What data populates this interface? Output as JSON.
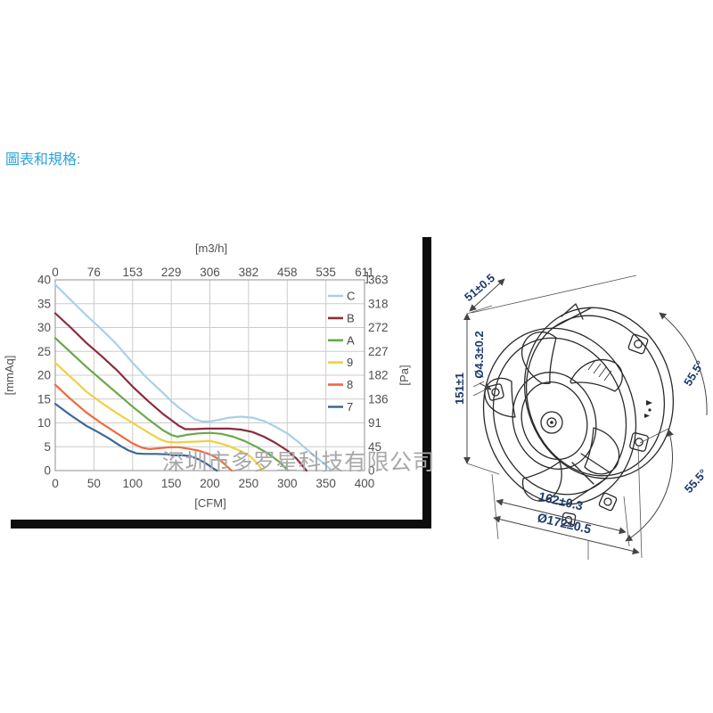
{
  "page": {
    "heading": "圖表和規格:",
    "watermark": "深圳市多罗星科技有限公司",
    "heading_color": "#2ba4d8",
    "watermark_color": "#a8a8a8",
    "frame_color": "#0d0d0d"
  },
  "chart_data": {
    "type": "line",
    "title": "",
    "grid": true,
    "legend_position": "top-right-inside",
    "top_axis": {
      "label": "[m3/h]",
      "ticks": [
        "0",
        "76",
        "153",
        "229",
        "306",
        "382",
        "458",
        "535",
        "611"
      ],
      "corner_mark": "]"
    },
    "bottom_axis": {
      "label": "[CFM]",
      "ticks": [
        "0",
        "50",
        "100",
        "150",
        "200",
        "250",
        "300",
        "350",
        "400"
      ],
      "range": [
        0,
        400
      ]
    },
    "left_axis": {
      "label": "[mmAq]",
      "ticks": [
        "40",
        "35",
        "30",
        "25",
        "20",
        "15",
        "10",
        "5",
        "0"
      ],
      "range": [
        0,
        40
      ]
    },
    "right_axis": {
      "label": "[Pa]",
      "ticks": [
        "363",
        "318",
        "272",
        "227",
        "182",
        "136",
        "91",
        "45",
        "0"
      ],
      "range": [
        0,
        363
      ]
    },
    "series": [
      {
        "name": "C",
        "color": "#a8d0e8",
        "points": [
          [
            0,
            39
          ],
          [
            20,
            35.8
          ],
          [
            40,
            32.6
          ],
          [
            60,
            29.6
          ],
          [
            80,
            26.4
          ],
          [
            100,
            22.6
          ],
          [
            120,
            19.2
          ],
          [
            140,
            16.2
          ],
          [
            150,
            14.6
          ],
          [
            160,
            13.2
          ],
          [
            170,
            12.0
          ],
          [
            180,
            10.8
          ],
          [
            190,
            10.3
          ],
          [
            200,
            10.3
          ],
          [
            210,
            10.6
          ],
          [
            225,
            11.1
          ],
          [
            240,
            11.3
          ],
          [
            255,
            11.1
          ],
          [
            270,
            10.4
          ],
          [
            285,
            9.2
          ],
          [
            300,
            7.8
          ],
          [
            315,
            5.9
          ],
          [
            330,
            3.8
          ],
          [
            345,
            1.8
          ],
          [
            358,
            0
          ]
        ]
      },
      {
        "name": "B",
        "color": "#8a2c3e",
        "points": [
          [
            0,
            33
          ],
          [
            20,
            30
          ],
          [
            40,
            26.8
          ],
          [
            60,
            24
          ],
          [
            80,
            21
          ],
          [
            100,
            17.6
          ],
          [
            120,
            14.6
          ],
          [
            140,
            11.8
          ],
          [
            150,
            10.6
          ],
          [
            160,
            9.4
          ],
          [
            168,
            8.7
          ],
          [
            180,
            8.7
          ],
          [
            195,
            8.8
          ],
          [
            210,
            8.8
          ],
          [
            225,
            8.8
          ],
          [
            240,
            8.6
          ],
          [
            255,
            8.1
          ],
          [
            270,
            7.1
          ],
          [
            285,
            5.8
          ],
          [
            300,
            4.2
          ],
          [
            312,
            2.5
          ],
          [
            325,
            0
          ]
        ]
      },
      {
        "name": "A",
        "color": "#6aa84a",
        "points": [
          [
            0,
            27.8
          ],
          [
            20,
            24.8
          ],
          [
            40,
            21.8
          ],
          [
            60,
            19
          ],
          [
            80,
            16.2
          ],
          [
            100,
            13.4
          ],
          [
            120,
            10.8
          ],
          [
            140,
            8.4
          ],
          [
            150,
            7.5
          ],
          [
            158,
            7.1
          ],
          [
            170,
            7.5
          ],
          [
            185,
            7.8
          ],
          [
            200,
            7.9
          ],
          [
            215,
            7.7
          ],
          [
            230,
            7.1
          ],
          [
            245,
            6.2
          ],
          [
            260,
            5.0
          ],
          [
            275,
            3.6
          ],
          [
            290,
            1.8
          ],
          [
            301,
            0
          ]
        ]
      },
      {
        "name": "9",
        "color": "#f0d040",
        "points": [
          [
            0,
            22.6
          ],
          [
            20,
            19.6
          ],
          [
            40,
            16.6
          ],
          [
            60,
            14.2
          ],
          [
            80,
            12
          ],
          [
            100,
            10
          ],
          [
            120,
            8
          ],
          [
            135,
            6.6
          ],
          [
            145,
            6.0
          ],
          [
            155,
            5.9
          ],
          [
            170,
            6.0
          ],
          [
            185,
            6.1
          ],
          [
            200,
            6.2
          ],
          [
            212,
            5.8
          ],
          [
            225,
            5.1
          ],
          [
            240,
            4.1
          ],
          [
            252,
            3.0
          ],
          [
            262,
            1.4
          ],
          [
            268,
            0
          ]
        ]
      },
      {
        "name": "8",
        "color": "#ee6a40",
        "points": [
          [
            0,
            18
          ],
          [
            20,
            15
          ],
          [
            40,
            12.2
          ],
          [
            60,
            9.9
          ],
          [
            80,
            7.8
          ],
          [
            100,
            5.7
          ],
          [
            112,
            4.8
          ],
          [
            122,
            4.5
          ],
          [
            135,
            4.7
          ],
          [
            148,
            4.9
          ],
          [
            160,
            4.9
          ],
          [
            172,
            4.6
          ],
          [
            185,
            4.2
          ],
          [
            200,
            3.4
          ],
          [
            212,
            2.4
          ],
          [
            222,
            0.9
          ],
          [
            228,
            0
          ]
        ]
      },
      {
        "name": "7",
        "color": "#39689a",
        "points": [
          [
            0,
            14
          ],
          [
            20,
            11.6
          ],
          [
            40,
            9.4
          ],
          [
            55,
            8.1
          ],
          [
            70,
            6.7
          ],
          [
            85,
            5.1
          ],
          [
            95,
            4.2
          ],
          [
            105,
            3.6
          ],
          [
            115,
            3.5
          ],
          [
            130,
            3.5
          ],
          [
            145,
            3.4
          ],
          [
            152,
            3.2
          ],
          [
            165,
            3.2
          ],
          [
            175,
            3.0
          ],
          [
            185,
            2.4
          ],
          [
            195,
            1.5
          ],
          [
            205,
            0.4
          ],
          [
            209,
            0
          ]
        ]
      }
    ]
  },
  "fan_drawing": {
    "dimensions": {
      "depth": "51±0.5",
      "height": "151±1",
      "hole": "Ø4.3±0.2",
      "angle_top": "55.5°",
      "angle_bottom": "55.5°",
      "bolt_spacing": "162±0.3",
      "diameter": "Ø172±0.5"
    }
  }
}
